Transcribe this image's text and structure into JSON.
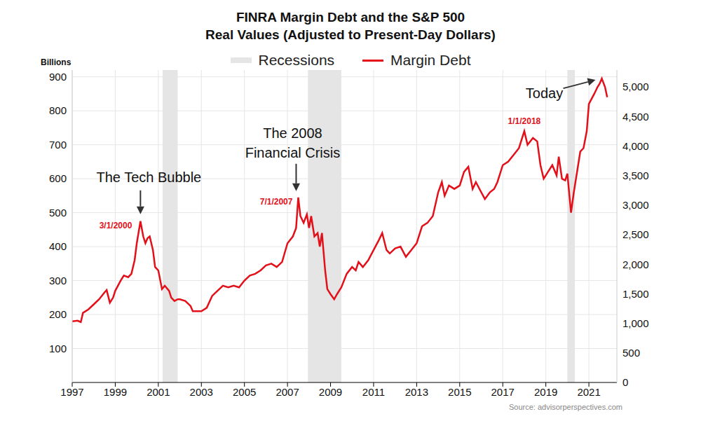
{
  "chart_data": {
    "type": "line",
    "title": "FINRA Margin Debt and the S&P 500",
    "subtitle": "Real Values (Adjusted to Present-Day Dollars)",
    "ylabel": "Billions",
    "source": "Source: advisorperspectives.com",
    "x": [
      1997.0,
      1997.25,
      1997.4,
      1997.5,
      1997.75,
      1998.0,
      1998.25,
      1998.5,
      1998.6,
      1998.75,
      1998.9,
      1999.0,
      1999.25,
      1999.4,
      1999.6,
      1999.75,
      1999.9,
      2000.0,
      2000.17,
      2000.3,
      2000.4,
      2000.5,
      2000.6,
      2000.75,
      2000.85,
      2001.0,
      2001.17,
      2001.3,
      2001.5,
      2001.6,
      2001.75,
      2001.9,
      2002.0,
      2002.25,
      2002.5,
      2002.6,
      2002.75,
      2003.0,
      2003.25,
      2003.5,
      2003.75,
      2004.0,
      2004.25,
      2004.5,
      2004.75,
      2005.0,
      2005.25,
      2005.5,
      2005.75,
      2006.0,
      2006.25,
      2006.5,
      2006.75,
      2007.0,
      2007.25,
      2007.4,
      2007.5,
      2007.6,
      2007.75,
      2007.9,
      2008.0,
      2008.1,
      2008.25,
      2008.4,
      2008.5,
      2008.6,
      2008.75,
      2008.85,
      2009.0,
      2009.17,
      2009.3,
      2009.5,
      2009.75,
      2010.0,
      2010.17,
      2010.3,
      2010.5,
      2010.75,
      2011.0,
      2011.25,
      2011.4,
      2011.6,
      2011.75,
      2012.0,
      2012.25,
      2012.5,
      2012.75,
      2013.0,
      2013.25,
      2013.5,
      2013.75,
      2014.0,
      2014.17,
      2014.3,
      2014.5,
      2014.75,
      2015.0,
      2015.2,
      2015.4,
      2015.6,
      2015.75,
      2016.0,
      2016.17,
      2016.4,
      2016.6,
      2016.75,
      2017.0,
      2017.25,
      2017.5,
      2017.75,
      2018.0,
      2018.15,
      2018.4,
      2018.6,
      2018.75,
      2018.9,
      2019.1,
      2019.3,
      2019.5,
      2019.6,
      2019.75,
      2019.9,
      2020.0,
      2020.17,
      2020.3,
      2020.45,
      2020.6,
      2020.75,
      2020.9,
      2021.0,
      2021.25,
      2021.4,
      2021.5,
      2021.6,
      2021.75,
      2021.85
    ],
    "series": [
      {
        "name": "Margin Debt",
        "color": "#e3101a",
        "values": [
          180,
          182,
          178,
          205,
          215,
          230,
          245,
          265,
          272,
          235,
          250,
          270,
          300,
          315,
          310,
          320,
          360,
          410,
          475,
          430,
          410,
          425,
          430,
          390,
          340,
          330,
          275,
          285,
          270,
          250,
          240,
          245,
          245,
          240,
          225,
          210,
          210,
          210,
          220,
          255,
          270,
          285,
          280,
          285,
          280,
          300,
          315,
          320,
          330,
          345,
          350,
          340,
          355,
          410,
          430,
          455,
          545,
          490,
          470,
          495,
          455,
          490,
          430,
          440,
          400,
          440,
          330,
          275,
          260,
          245,
          260,
          280,
          320,
          340,
          330,
          355,
          340,
          360,
          390,
          420,
          440,
          390,
          380,
          395,
          400,
          370,
          390,
          410,
          460,
          470,
          490,
          560,
          590,
          550,
          580,
          570,
          580,
          620,
          635,
          570,
          590,
          560,
          540,
          560,
          570,
          590,
          640,
          650,
          670,
          690,
          740,
          700,
          720,
          710,
          640,
          600,
          620,
          640,
          610,
          665,
          600,
          595,
          615,
          500,
          560,
          620,
          680,
          690,
          740,
          820,
          850,
          870,
          880,
          895,
          870,
          840
        ]
      }
    ],
    "xlim": [
      1997,
      2022.3
    ],
    "xticks": [
      1997,
      1999,
      2001,
      2003,
      2005,
      2007,
      2009,
      2011,
      2013,
      2015,
      2017,
      2019,
      2021
    ],
    "ylim": [
      0,
      920
    ],
    "yticks": [
      100,
      200,
      300,
      400,
      500,
      600,
      700,
      800,
      900
    ],
    "y2lim": [
      0,
      5285
    ],
    "y2ticks": [
      0,
      500,
      {
        "value": 1000,
        "label": "1,000"
      },
      {
        "value": 1500,
        "label": "1,500"
      },
      {
        "value": 2000,
        "label": "2,000"
      },
      {
        "value": 2500,
        "label": "2,500"
      },
      {
        "value": 3000,
        "label": "3,000"
      },
      {
        "value": 3500,
        "label": "3,500"
      },
      {
        "value": 4000,
        "label": "4,000"
      },
      {
        "value": 4500,
        "label": "4,500"
      },
      {
        "value": 5000,
        "label": "5,000"
      }
    ],
    "grid": true,
    "legend": "top",
    "recessions": {
      "name": "Recessions",
      "color": "#e5e5e5",
      "periods": [
        [
          2001.2,
          2001.9
        ],
        [
          2007.95,
          2009.5
        ],
        [
          2020.0,
          2020.35
        ]
      ]
    },
    "annotations": [
      {
        "lines": [
          "The Tech Bubble"
        ],
        "x": 2000.17,
        "y": 475
      },
      {
        "lines": [
          "The 2008",
          "Financial Crisis"
        ],
        "x": 2007.5,
        "y": 545
      },
      {
        "lines": [
          "Today"
        ],
        "x": 2021.6,
        "y": 895
      }
    ],
    "peak_labels": [
      {
        "text": "3/1/2000",
        "x": 2000.17,
        "y": 475
      },
      {
        "text": "7/1/2007",
        "x": 2007.5,
        "y": 545
      },
      {
        "text": "1/1/2018",
        "x": 2018.0,
        "y": 740
      }
    ]
  }
}
